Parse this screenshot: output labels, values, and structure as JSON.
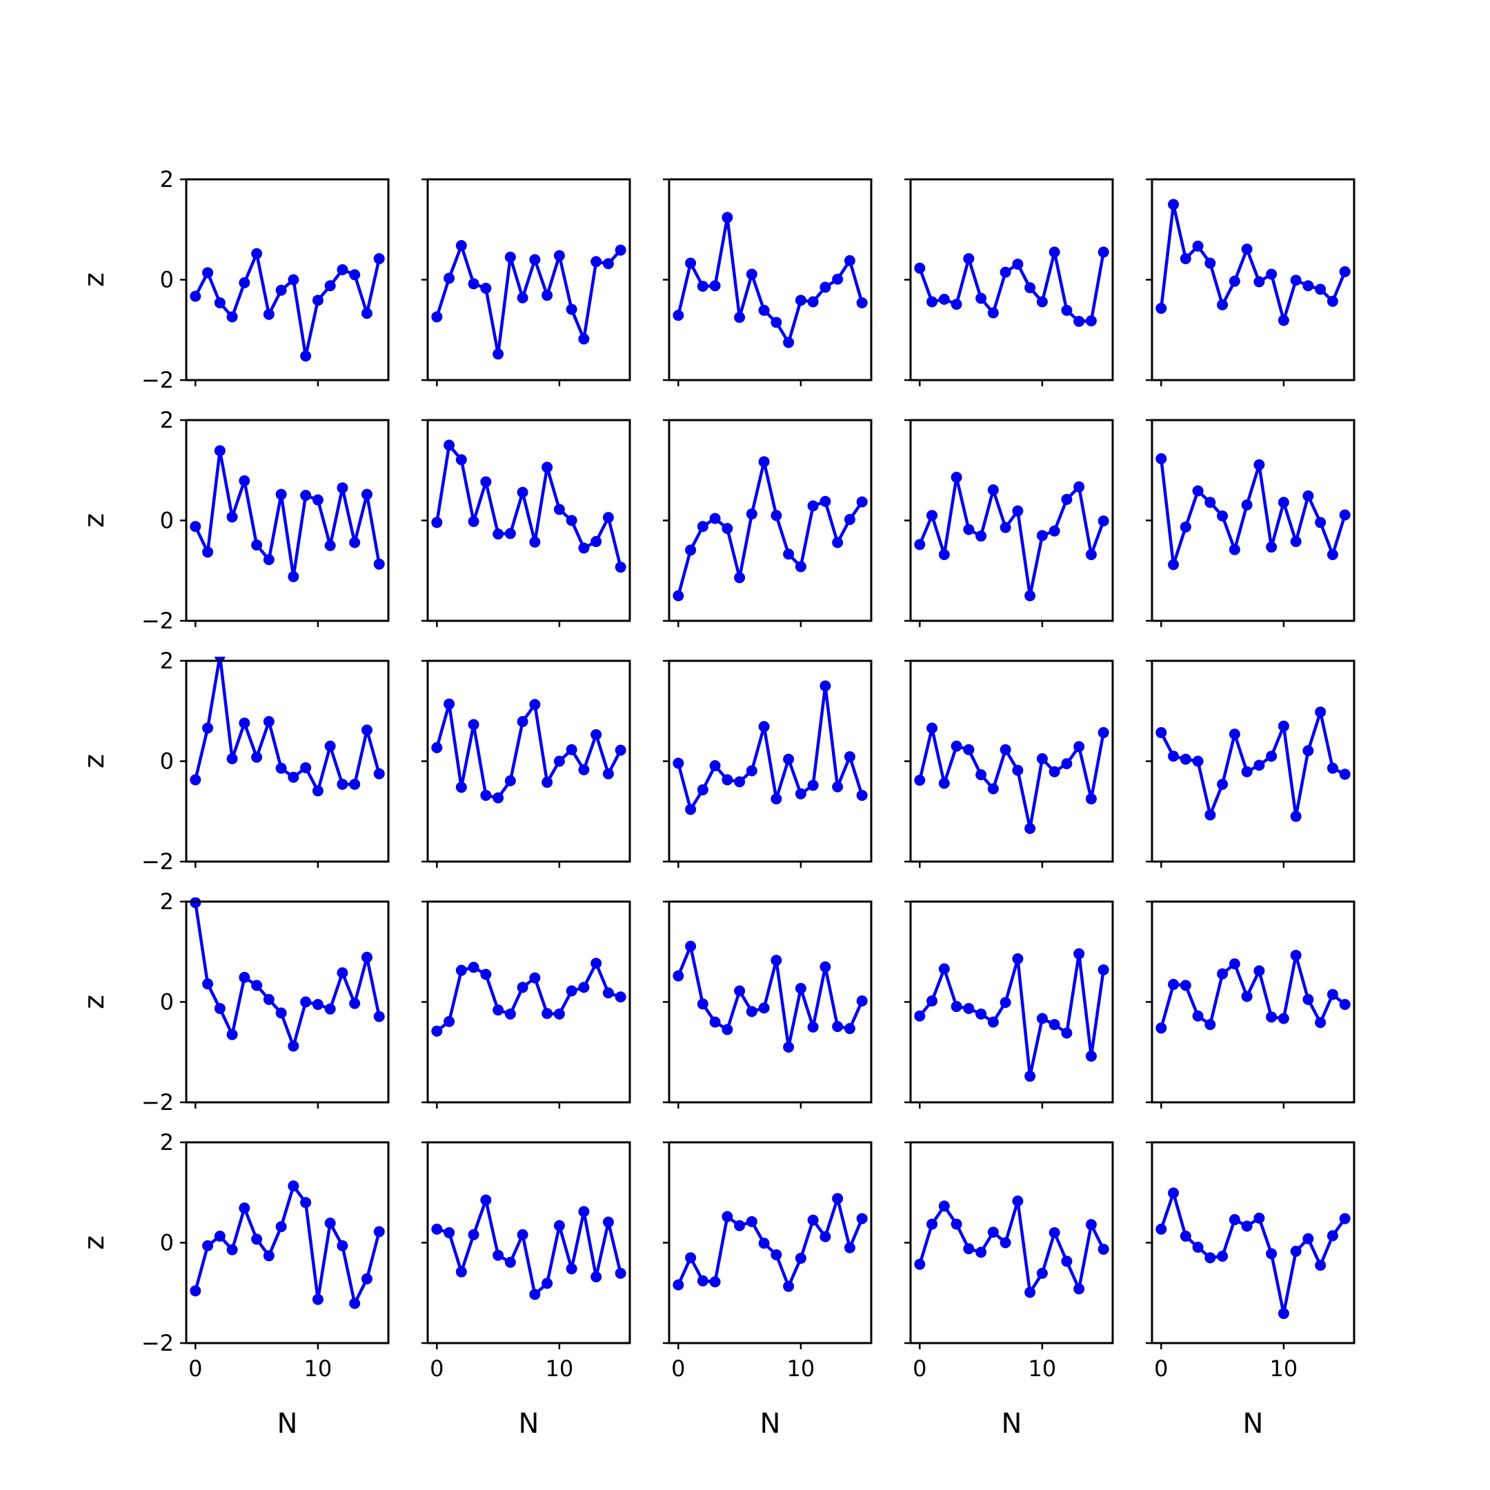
{
  "chart_data": {
    "type": "line",
    "layout": "5x5 grid of line plots",
    "shared_axes": true,
    "xlabel": "N",
    "ylabel": "z",
    "xlim": [
      -0.75,
      15.75
    ],
    "ylim": [
      -2,
      2
    ],
    "x_ticks": [
      0,
      10
    ],
    "x_tick_labels": [
      "0",
      "10"
    ],
    "y_ticks": [
      -2,
      0,
      2
    ],
    "y_tick_labels": [
      "−2",
      "0",
      "2"
    ],
    "grid": false,
    "line_color": "#0000ee",
    "marker": "circle",
    "x": [
      0,
      1,
      2,
      3,
      4,
      5,
      6,
      7,
      8,
      9,
      10,
      11,
      12,
      13,
      14,
      15
    ],
    "panels": [
      {
        "values": [
          -0.33,
          0.14,
          -0.46,
          -0.74,
          -0.06,
          0.52,
          -0.69,
          -0.21,
          0.0,
          -1.52,
          -0.41,
          -0.12,
          0.2,
          0.1,
          -0.67,
          0.42
        ]
      },
      {
        "values": [
          -0.74,
          0.03,
          0.68,
          -0.08,
          -0.17,
          -1.48,
          0.45,
          -0.36,
          0.4,
          -0.31,
          0.48,
          -0.59,
          -1.18,
          0.36,
          0.32,
          0.59
        ]
      },
      {
        "values": [
          -0.71,
          0.33,
          -0.13,
          -0.12,
          1.24,
          -0.75,
          0.11,
          -0.61,
          -0.85,
          -1.25,
          -0.41,
          -0.44,
          -0.15,
          0.01,
          0.38,
          -0.46
        ]
      },
      {
        "values": [
          0.23,
          -0.44,
          -0.39,
          -0.49,
          0.42,
          -0.37,
          -0.66,
          0.15,
          0.31,
          -0.16,
          -0.44,
          0.55,
          -0.61,
          -0.83,
          -0.82,
          0.55
        ]
      },
      {
        "values": [
          -0.57,
          1.5,
          0.42,
          0.67,
          0.33,
          -0.5,
          -0.03,
          0.61,
          -0.04,
          0.11,
          -0.81,
          -0.01,
          -0.12,
          -0.19,
          -0.43,
          0.16
        ]
      },
      {
        "values": [
          -0.12,
          -0.63,
          1.39,
          0.07,
          0.79,
          -0.49,
          -0.78,
          0.52,
          -1.12,
          0.5,
          0.41,
          -0.5,
          0.65,
          -0.44,
          0.52,
          -0.87
        ]
      },
      {
        "values": [
          -0.04,
          1.5,
          1.21,
          -0.02,
          0.77,
          -0.27,
          -0.26,
          0.56,
          -0.43,
          1.06,
          0.22,
          0.0,
          -0.55,
          -0.42,
          0.06,
          -0.93
        ]
      },
      {
        "values": [
          -1.5,
          -0.59,
          -0.12,
          0.04,
          -0.16,
          -1.14,
          0.13,
          1.17,
          0.1,
          -0.67,
          -0.92,
          0.29,
          0.38,
          -0.44,
          0.02,
          0.37
        ]
      },
      {
        "values": [
          -0.48,
          0.1,
          -0.68,
          0.86,
          -0.18,
          -0.31,
          0.61,
          -0.14,
          0.19,
          -1.5,
          -0.3,
          -0.21,
          0.42,
          0.67,
          -0.68,
          -0.01
        ]
      },
      {
        "values": [
          1.23,
          -0.88,
          -0.13,
          0.59,
          0.36,
          0.09,
          -0.58,
          0.31,
          1.11,
          -0.53,
          0.36,
          -0.42,
          0.49,
          -0.04,
          -0.68,
          0.11
        ]
      },
      {
        "values": [
          -0.37,
          0.66,
          2.1,
          0.05,
          0.76,
          0.08,
          0.79,
          -0.14,
          -0.32,
          -0.13,
          -0.59,
          0.3,
          -0.46,
          -0.46,
          0.62,
          -0.25
        ]
      },
      {
        "values": [
          0.27,
          1.14,
          -0.52,
          0.73,
          -0.68,
          -0.73,
          -0.39,
          0.79,
          1.13,
          -0.42,
          0.0,
          0.23,
          -0.17,
          0.53,
          -0.25,
          0.22
        ]
      },
      {
        "values": [
          -0.04,
          -0.96,
          -0.57,
          -0.09,
          -0.37,
          -0.41,
          -0.19,
          0.69,
          -0.75,
          0.04,
          -0.65,
          -0.48,
          1.5,
          -0.51,
          0.09,
          -0.68
        ]
      },
      {
        "values": [
          -0.38,
          0.66,
          -0.44,
          0.3,
          0.23,
          -0.27,
          -0.55,
          0.23,
          -0.18,
          -1.34,
          0.05,
          -0.21,
          -0.05,
          0.29,
          -0.75,
          0.57
        ]
      },
      {
        "values": [
          0.57,
          0.1,
          0.04,
          0.0,
          -1.07,
          -0.46,
          0.54,
          -0.21,
          -0.08,
          0.1,
          0.7,
          -1.1,
          0.21,
          0.98,
          -0.14,
          -0.26
        ]
      },
      {
        "values": [
          1.98,
          0.36,
          -0.13,
          -0.65,
          0.49,
          0.33,
          0.05,
          -0.22,
          -0.88,
          0.0,
          -0.05,
          -0.14,
          0.58,
          -0.03,
          0.89,
          -0.29
        ]
      },
      {
        "values": [
          -0.58,
          -0.39,
          0.63,
          0.69,
          0.55,
          -0.16,
          -0.24,
          0.29,
          0.48,
          -0.23,
          -0.24,
          0.22,
          0.29,
          0.77,
          0.18,
          0.1
        ]
      },
      {
        "values": [
          0.52,
          1.11,
          -0.04,
          -0.4,
          -0.55,
          0.22,
          -0.19,
          -0.12,
          0.83,
          -0.9,
          0.27,
          -0.5,
          0.7,
          -0.49,
          -0.53,
          0.02
        ]
      },
      {
        "values": [
          -0.28,
          0.02,
          0.66,
          -0.09,
          -0.13,
          -0.24,
          -0.4,
          -0.01,
          0.86,
          -1.48,
          -0.33,
          -0.45,
          -0.62,
          0.96,
          -1.08,
          0.64
        ]
      },
      {
        "values": [
          -0.52,
          0.35,
          0.33,
          -0.28,
          -0.45,
          0.56,
          0.76,
          0.11,
          0.62,
          -0.3,
          -0.33,
          0.93,
          0.05,
          -0.41,
          0.15,
          -0.05
        ]
      },
      {
        "values": [
          -0.96,
          -0.06,
          0.13,
          -0.14,
          0.69,
          0.07,
          -0.26,
          0.32,
          1.13,
          0.8,
          -1.13,
          0.39,
          -0.06,
          -1.21,
          -0.72,
          0.22
        ]
      },
      {
        "values": [
          0.27,
          0.2,
          -0.58,
          0.16,
          0.85,
          -0.25,
          -0.39,
          0.16,
          -1.03,
          -0.81,
          0.34,
          -0.52,
          0.62,
          -0.68,
          0.41,
          -0.61
        ]
      },
      {
        "values": [
          -0.84,
          -0.3,
          -0.76,
          -0.78,
          0.52,
          0.34,
          0.42,
          -0.01,
          -0.24,
          -0.87,
          -0.31,
          0.45,
          0.12,
          0.88,
          -0.1,
          0.48
        ]
      },
      {
        "values": [
          -0.43,
          0.37,
          0.73,
          0.37,
          -0.12,
          -0.19,
          0.21,
          0.0,
          0.83,
          -0.99,
          -0.61,
          0.2,
          -0.37,
          -0.92,
          0.36,
          -0.13
        ]
      },
      {
        "values": [
          0.27,
          0.99,
          0.13,
          -0.09,
          -0.3,
          -0.27,
          0.46,
          0.33,
          0.49,
          -0.22,
          -1.41,
          -0.17,
          0.08,
          -0.45,
          0.14,
          0.48
        ]
      }
    ]
  }
}
